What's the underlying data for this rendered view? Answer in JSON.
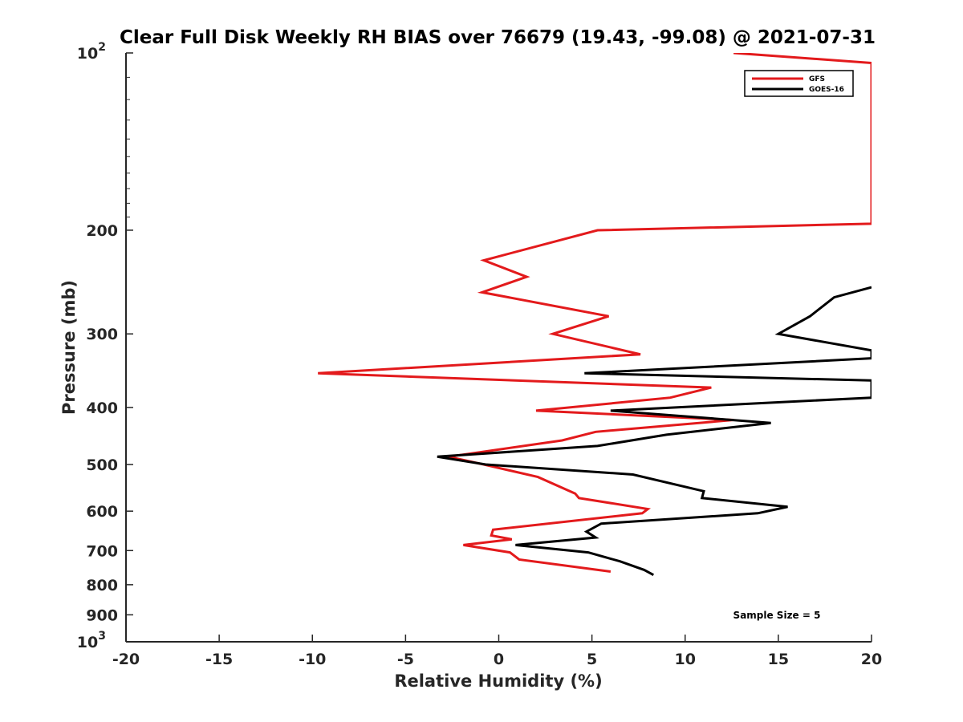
{
  "chart_data": {
    "type": "line",
    "title": "Clear Full Disk Weekly RH BIAS over 76679 (19.43, -99.08) @ 2021-07-31",
    "xlabel": "Relative Humidity (%)",
    "ylabel": "Pressure (mb)",
    "xlim": [
      -20,
      20
    ],
    "ylim": [
      100,
      1000
    ],
    "y_scale": "log",
    "y_reversed": true,
    "x_ticks": [
      -20,
      -15,
      -10,
      -5,
      0,
      5,
      10,
      15,
      20
    ],
    "x_tick_labels": [
      "-20",
      "-15",
      "-10",
      "-5",
      "0",
      "5",
      "10",
      "15",
      "20"
    ],
    "y_ticks": [
      100,
      200,
      300,
      400,
      500,
      600,
      700,
      800,
      900,
      1000
    ],
    "y_tick_labels": [
      {
        "base": "10",
        "exp": "2"
      },
      {
        "base": "200",
        "exp": ""
      },
      {
        "base": "300",
        "exp": ""
      },
      {
        "base": "400",
        "exp": ""
      },
      {
        "base": "500",
        "exp": ""
      },
      {
        "base": "600",
        "exp": ""
      },
      {
        "base": "700",
        "exp": ""
      },
      {
        "base": "800",
        "exp": ""
      },
      {
        "base": "900",
        "exp": ""
      },
      {
        "base": "10",
        "exp": "3"
      }
    ],
    "grid": false,
    "legend_position": "top-right",
    "series": [
      {
        "name": "GFS",
        "color": "#e31a1c",
        "points": [
          [
            12.6,
            100
          ],
          [
            20.0,
            104
          ],
          [
            20.0,
            195
          ],
          [
            5.3,
            200
          ],
          [
            -0.8,
            225
          ],
          [
            1.5,
            240
          ],
          [
            -0.9,
            255
          ],
          [
            5.9,
            280
          ],
          [
            2.9,
            300
          ],
          [
            7.6,
            325
          ],
          [
            -9.7,
            350
          ],
          [
            11.4,
            370
          ],
          [
            9.2,
            385
          ],
          [
            2.0,
            405
          ],
          [
            12.6,
            420
          ],
          [
            5.2,
            440
          ],
          [
            3.4,
            455
          ],
          [
            -2.7,
            485
          ],
          [
            -0.8,
            500
          ],
          [
            2.1,
            525
          ],
          [
            4.1,
            560
          ],
          [
            4.3,
            570
          ],
          [
            8.0,
            595
          ],
          [
            7.7,
            605
          ],
          [
            -0.3,
            645
          ],
          [
            -0.4,
            660
          ],
          [
            0.7,
            670
          ],
          [
            -1.9,
            685
          ],
          [
            0.6,
            705
          ],
          [
            1.1,
            725
          ],
          [
            6.0,
            760
          ]
        ]
      },
      {
        "name": "GOES-16",
        "color": "#000000",
        "points": [
          [
            20.0,
            250
          ],
          [
            18.0,
            260
          ],
          [
            16.7,
            280
          ],
          [
            15.0,
            300
          ],
          [
            20.0,
            320
          ],
          [
            20.0,
            330
          ],
          [
            4.6,
            350
          ],
          [
            20.0,
            360
          ],
          [
            20.0,
            385
          ],
          [
            6.0,
            405
          ],
          [
            14.6,
            425
          ],
          [
            9.0,
            445
          ],
          [
            5.3,
            465
          ],
          [
            -3.3,
            485
          ],
          [
            -0.7,
            500
          ],
          [
            7.2,
            520
          ],
          [
            11.0,
            555
          ],
          [
            10.9,
            570
          ],
          [
            15.5,
            590
          ],
          [
            13.9,
            605
          ],
          [
            5.5,
            630
          ],
          [
            4.7,
            650
          ],
          [
            5.2,
            665
          ],
          [
            0.9,
            685
          ],
          [
            4.8,
            705
          ],
          [
            6.5,
            730
          ],
          [
            7.8,
            755
          ],
          [
            8.3,
            770
          ]
        ]
      }
    ],
    "annotations": [
      {
        "text": "Sample Size = 5",
        "x": 15,
        "y": 910
      }
    ]
  }
}
